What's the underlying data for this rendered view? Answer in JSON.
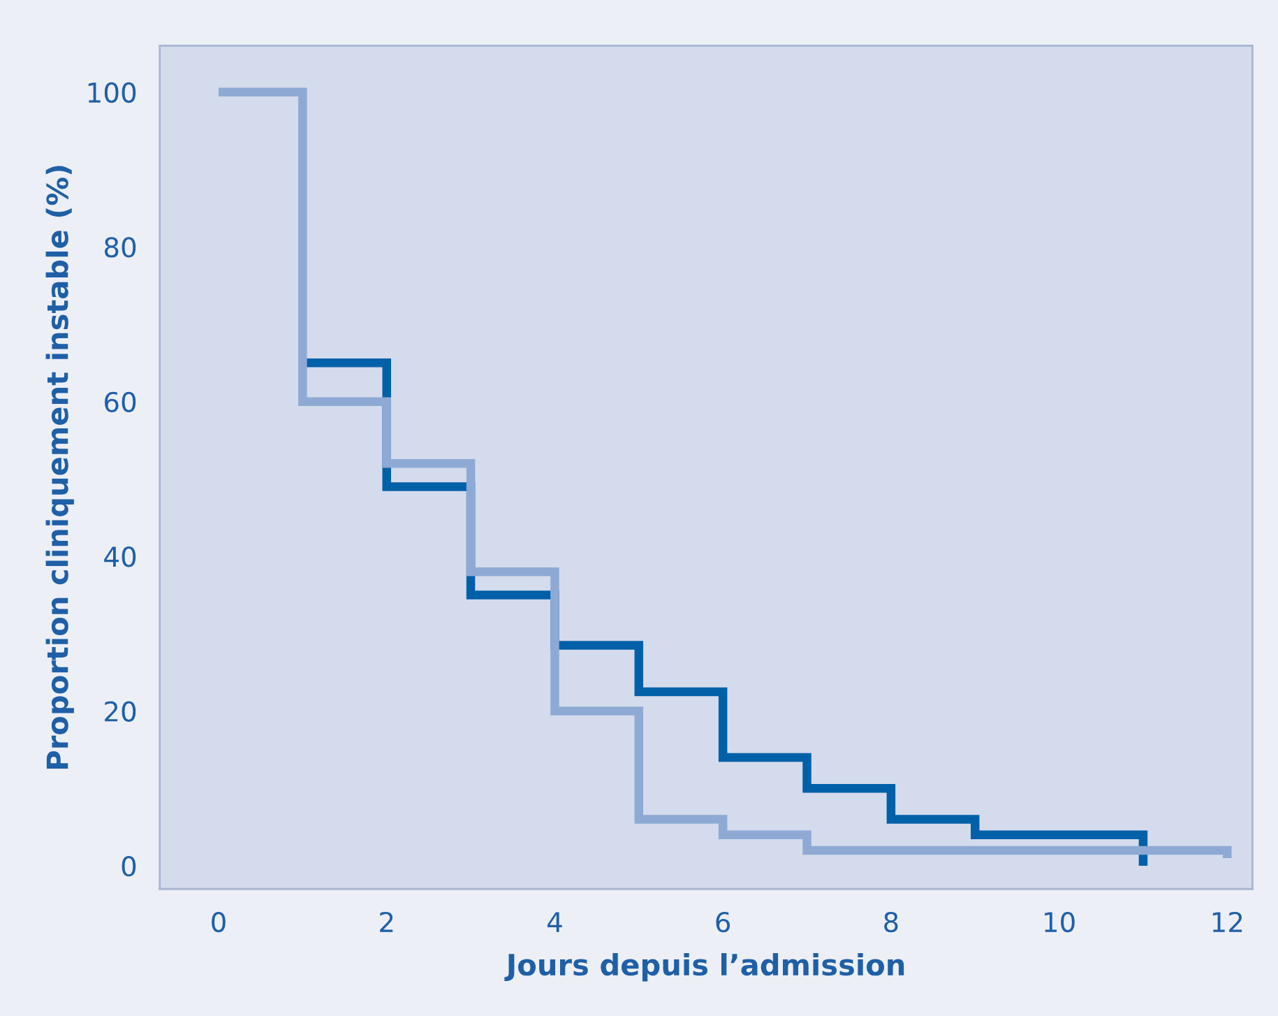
{
  "chart_data": {
    "type": "step",
    "xlabel": "Jours depuis l’admission",
    "ylabel": "Proportion cliniquement instable (%)",
    "series": [
      {
        "color": "#0060a8",
        "x": [
          1,
          2,
          3,
          4,
          5,
          6,
          7,
          8,
          9,
          10,
          11
        ],
        "values": [
          65,
          49,
          35,
          28.5,
          22.5,
          14,
          10,
          6,
          4,
          4,
          0
        ]
      },
      {
        "color": "#8eaad4",
        "x": [
          0,
          1,
          2,
          3,
          4,
          5,
          6,
          7,
          8,
          9,
          10,
          11,
          12
        ],
        "values": [
          100,
          60,
          52,
          38,
          20,
          6,
          4,
          2,
          2,
          2,
          2,
          2,
          1
        ]
      }
    ],
    "xlim": [
      -0.7,
      12.3
    ],
    "ylim": [
      -3,
      106
    ],
    "xticks": [
      0,
      2,
      4,
      6,
      8,
      10,
      12
    ],
    "yticks": [
      0,
      20,
      40,
      60,
      80,
      100
    ],
    "grid": false,
    "legend": false,
    "line_style": "solid"
  }
}
